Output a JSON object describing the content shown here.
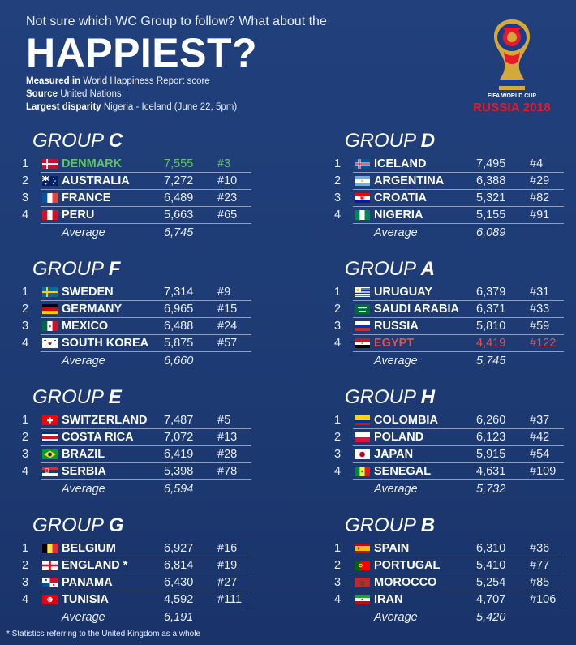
{
  "header": {
    "intro": "Not sure which WC Group to follow? What about the",
    "headline": "HAPPIEST?",
    "measured_label": "Measured in",
    "measured_value": "World Happiness Report score",
    "source_label": "Source",
    "source_value": "United Nations",
    "disparity_label": "Largest disparity",
    "disparity_value": "Nigeria - Iceland (June 22, 5pm)"
  },
  "logo": {
    "line1": "FIFA WORLD CUP",
    "line2": "RUSSIA 2018"
  },
  "average_label": "Average",
  "groups": [
    {
      "prefix": "GROUP",
      "letter": "C",
      "average": "6,745",
      "teams": [
        {
          "rank": "1",
          "name": "DENMARK",
          "score": "7,555",
          "world_rank": "#3",
          "flag": "denmark",
          "highlight": "green"
        },
        {
          "rank": "2",
          "name": "AUSTRALIA",
          "score": "7,272",
          "world_rank": "#10",
          "flag": "australia"
        },
        {
          "rank": "3",
          "name": "FRANCE",
          "score": "6,489",
          "world_rank": "#23",
          "flag": "france"
        },
        {
          "rank": "4",
          "name": "PERU",
          "score": "5,663",
          "world_rank": "#65",
          "flag": "peru"
        }
      ]
    },
    {
      "prefix": "GROUP",
      "letter": "D",
      "average": "6,089",
      "teams": [
        {
          "rank": "1",
          "name": "ICELAND",
          "score": "7,495",
          "world_rank": "#4",
          "flag": "iceland"
        },
        {
          "rank": "2",
          "name": "ARGENTINA",
          "score": "6,388",
          "world_rank": "#29",
          "flag": "argentina"
        },
        {
          "rank": "3",
          "name": "CROATIA",
          "score": "5,321",
          "world_rank": "#82",
          "flag": "croatia"
        },
        {
          "rank": "4",
          "name": "NIGERIA",
          "score": "5,155",
          "world_rank": "#91",
          "flag": "nigeria"
        }
      ]
    },
    {
      "prefix": "GROUP",
      "letter": "F",
      "average": "6,660",
      "teams": [
        {
          "rank": "1",
          "name": "SWEDEN",
          "score": "7,314",
          "world_rank": "#9",
          "flag": "sweden"
        },
        {
          "rank": "2",
          "name": "GERMANY",
          "score": "6,965",
          "world_rank": "#15",
          "flag": "germany"
        },
        {
          "rank": "3",
          "name": "MEXICO",
          "score": "6,488",
          "world_rank": "#24",
          "flag": "mexico"
        },
        {
          "rank": "4",
          "name": "SOUTH KOREA",
          "score": "5,875",
          "world_rank": "#57",
          "flag": "korea"
        }
      ]
    },
    {
      "prefix": "GROUP",
      "letter": "A",
      "average": "5,745",
      "teams": [
        {
          "rank": "1",
          "name": "URUGUAY",
          "score": "6,379",
          "world_rank": "#31",
          "flag": "uruguay"
        },
        {
          "rank": "2",
          "name": "SAUDI ARABIA",
          "score": "6,371",
          "world_rank": "#33",
          "flag": "saudi"
        },
        {
          "rank": "3",
          "name": "RUSSIA",
          "score": "5,810",
          "world_rank": "#59",
          "flag": "russia"
        },
        {
          "rank": "4",
          "name": "EGYPT",
          "score": "4,419",
          "world_rank": "#122",
          "flag": "egypt",
          "highlight": "red"
        }
      ]
    },
    {
      "prefix": "GROUP",
      "letter": "E",
      "average": "6,594",
      "teams": [
        {
          "rank": "1",
          "name": "SWITZERLAND",
          "score": "7,487",
          "world_rank": "#5",
          "flag": "switzerland"
        },
        {
          "rank": "2",
          "name": "COSTA RICA",
          "score": "7,072",
          "world_rank": "#13",
          "flag": "costarica"
        },
        {
          "rank": "3",
          "name": "BRAZIL",
          "score": "6,419",
          "world_rank": "#28",
          "flag": "brazil"
        },
        {
          "rank": "4",
          "name": "SERBIA",
          "score": "5,398",
          "world_rank": "#78",
          "flag": "serbia"
        }
      ]
    },
    {
      "prefix": "GROUP",
      "letter": "H",
      "average": "5,732",
      "teams": [
        {
          "rank": "1",
          "name": "COLOMBIA",
          "score": "6,260",
          "world_rank": "#37",
          "flag": "colombia"
        },
        {
          "rank": "2",
          "name": "POLAND",
          "score": "6,123",
          "world_rank": "#42",
          "flag": "poland"
        },
        {
          "rank": "3",
          "name": "JAPAN",
          "score": "5,915",
          "world_rank": "#54",
          "flag": "japan"
        },
        {
          "rank": "4",
          "name": "SENEGAL",
          "score": "4,631",
          "world_rank": "#109",
          "flag": "senegal"
        }
      ]
    },
    {
      "prefix": "GROUP",
      "letter": "G",
      "average": "6,191",
      "teams": [
        {
          "rank": "1",
          "name": "BELGIUM",
          "score": "6,927",
          "world_rank": "#16",
          "flag": "belgium"
        },
        {
          "rank": "2",
          "name": "ENGLAND *",
          "score": "6,814",
          "world_rank": "#19",
          "flag": "england"
        },
        {
          "rank": "3",
          "name": "PANAMA",
          "score": "6,430",
          "world_rank": "#27",
          "flag": "panama"
        },
        {
          "rank": "4",
          "name": "TUNISIA",
          "score": "4,592",
          "world_rank": "#111",
          "flag": "tunisia"
        }
      ]
    },
    {
      "prefix": "GROUP",
      "letter": "B",
      "average": "5,420",
      "teams": [
        {
          "rank": "1",
          "name": "SPAIN",
          "score": "6,310",
          "world_rank": "#36",
          "flag": "spain"
        },
        {
          "rank": "2",
          "name": "PORTUGAL",
          "score": "5,410",
          "world_rank": "#77",
          "flag": "portugal"
        },
        {
          "rank": "3",
          "name": "MOROCCO",
          "score": "5,254",
          "world_rank": "#85",
          "flag": "morocco"
        },
        {
          "rank": "4",
          "name": "IRAN",
          "score": "4,707",
          "world_rank": "#106",
          "flag": "iran"
        }
      ]
    }
  ],
  "footnote": "* Statistics referring to the United Kingdom as a whole",
  "colors": {
    "background": "#1f3c78",
    "highest_highlight": "#62c26a",
    "lowest_highlight": "#e05252",
    "brand_red": "#e8192c"
  }
}
